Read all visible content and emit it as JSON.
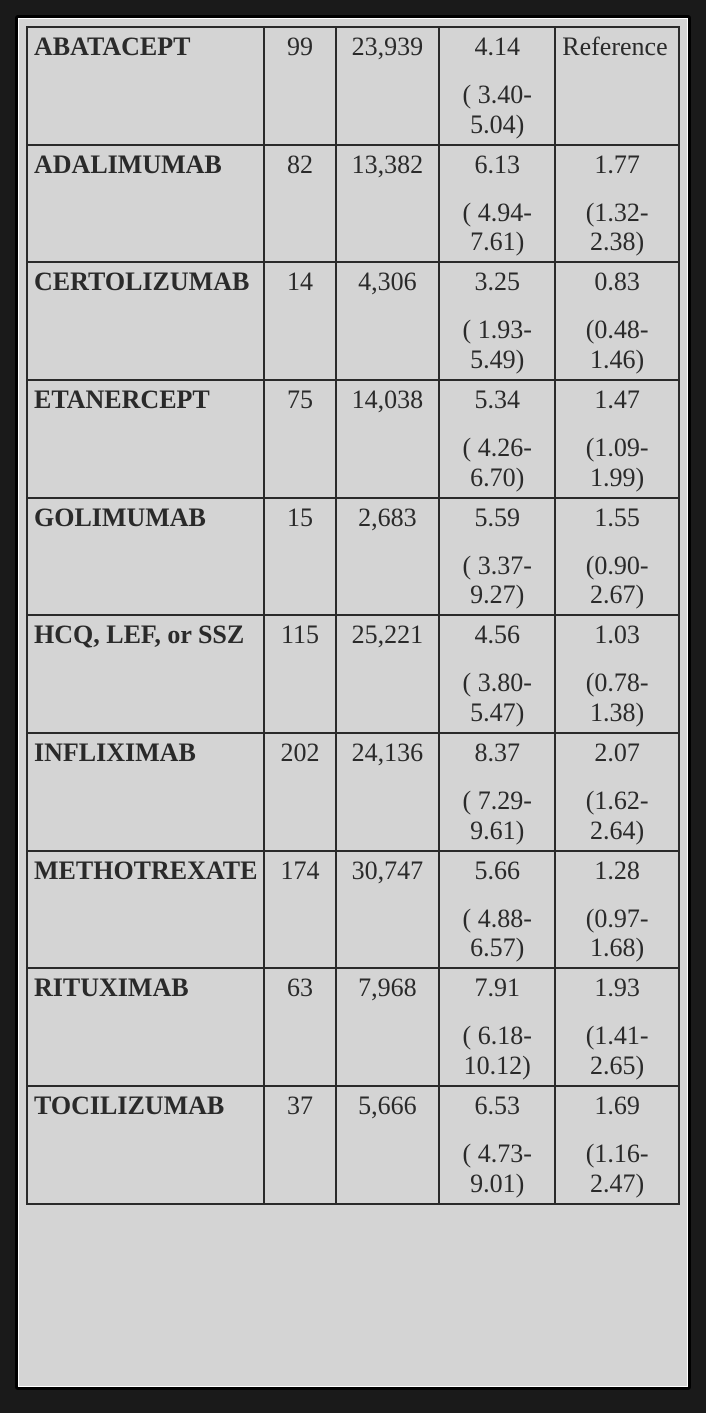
{
  "table": {
    "type": "table",
    "background_color": "#d4d4d4",
    "border_color": "#2a2a2a",
    "text_color": "#2a2a2a",
    "font_family": "Times New Roman",
    "font_size_pt": 20,
    "columns": [
      "drug",
      "n",
      "total",
      "rate",
      "ratio"
    ],
    "column_widths_pct": [
      36,
      11,
      16,
      18,
      19
    ],
    "column_align": [
      "left",
      "center",
      "center",
      "center",
      "center"
    ],
    "rows": [
      {
        "drug": "ABATACEPT",
        "n": "99",
        "total": "23,939",
        "rate_main": "4.14",
        "rate_ci": "( 3.40- 5.04)",
        "ratio_main": "Reference",
        "ratio_ci": "",
        "ratio_is_reference": true
      },
      {
        "drug": "ADALIMUMAB",
        "n": "82",
        "total": "13,382",
        "rate_main": "6.13",
        "rate_ci": "( 4.94- 7.61)",
        "ratio_main": "1.77",
        "ratio_ci": "(1.32- 2.38)",
        "ratio_is_reference": false
      },
      {
        "drug": "CERTOLIZUMAB",
        "n": "14",
        "total": "4,306",
        "rate_main": "3.25",
        "rate_ci": "( 1.93- 5.49)",
        "ratio_main": "0.83",
        "ratio_ci": "(0.48- 1.46)",
        "ratio_is_reference": false
      },
      {
        "drug": "ETANERCEPT",
        "n": "75",
        "total": "14,038",
        "rate_main": "5.34",
        "rate_ci": "( 4.26- 6.70)",
        "ratio_main": "1.47",
        "ratio_ci": "(1.09- 1.99)",
        "ratio_is_reference": false
      },
      {
        "drug": "GOLIMUMAB",
        "n": "15",
        "total": "2,683",
        "rate_main": "5.59",
        "rate_ci": "( 3.37- 9.27)",
        "ratio_main": "1.55",
        "ratio_ci": "(0.90- 2.67)",
        "ratio_is_reference": false
      },
      {
        "drug": "HCQ, LEF, or SSZ",
        "n": "115",
        "total": "25,221",
        "rate_main": "4.56",
        "rate_ci": "( 3.80- 5.47)",
        "ratio_main": "1.03",
        "ratio_ci": "(0.78- 1.38)",
        "ratio_is_reference": false
      },
      {
        "drug": "INFLIXIMAB",
        "n": "202",
        "total": "24,136",
        "rate_main": "8.37",
        "rate_ci": "( 7.29- 9.61)",
        "ratio_main": "2.07",
        "ratio_ci": "(1.62- 2.64)",
        "ratio_is_reference": false
      },
      {
        "drug": "METHOTREXATE",
        "n": "174",
        "total": "30,747",
        "rate_main": "5.66",
        "rate_ci": "( 4.88- 6.57)",
        "ratio_main": "1.28",
        "ratio_ci": "(0.97- 1.68)",
        "ratio_is_reference": false
      },
      {
        "drug": "RITUXIMAB",
        "n": "63",
        "total": "7,968",
        "rate_main": "7.91",
        "rate_ci": "( 6.18- 10.12)",
        "ratio_main": "1.93",
        "ratio_ci": "(1.41- 2.65)",
        "ratio_is_reference": false
      },
      {
        "drug": "TOCILIZUMAB",
        "n": "37",
        "total": "5,666",
        "rate_main": "6.53",
        "rate_ci": "( 4.73- 9.01)",
        "ratio_main": "1.69",
        "ratio_ci": "(1.16- 2.47)",
        "ratio_is_reference": false
      }
    ]
  }
}
